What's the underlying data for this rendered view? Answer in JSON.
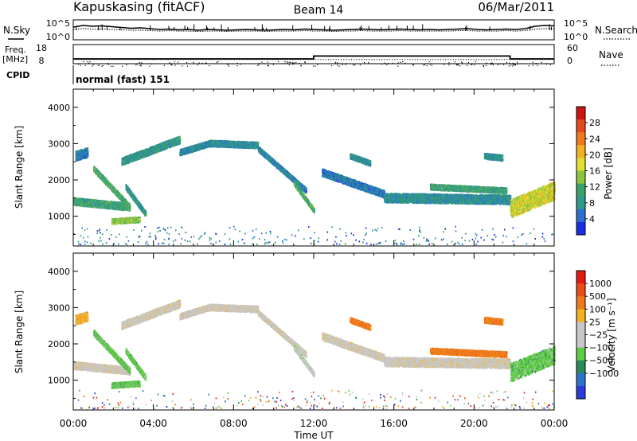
{
  "header": {
    "station": "Kapuskasing (fitACF)",
    "beam": "Beam 14",
    "date": "06/Mar/2011"
  },
  "noise_panel": {
    "left_label": "N.Sky",
    "right_label": "N.Search",
    "left_ticks": [
      "10^5",
      "10^0"
    ],
    "right_ticks": [
      "10^5",
      "10^0"
    ],
    "noise_sky_trace": [
      3.2,
      3.6,
      3.4,
      3.5,
      3.3,
      3.1,
      2.9,
      3.0,
      2.8,
      2.6,
      2.7,
      2.5,
      2.6,
      2.4,
      2.6,
      2.5,
      2.4,
      2.5,
      2.6,
      2.5,
      2.4,
      2.5,
      2.6,
      2.5,
      2.7,
      2.6,
      2.5,
      2.4,
      2.5,
      2.6,
      2.7,
      2.6,
      2.5,
      2.6,
      2.7,
      2.6,
      2.5,
      2.6,
      2.5,
      2.6,
      2.7,
      2.8,
      2.6,
      2.5,
      2.6,
      2.7,
      2.6,
      2.8,
      3.4,
      3.6,
      3.5
    ],
    "noise_search_trace": [
      2.6,
      2.8,
      2.7,
      2.7,
      2.6,
      2.5,
      2.4,
      2.4,
      2.3,
      2.2,
      2.3,
      2.2,
      2.2,
      2.1,
      2.2,
      2.2,
      2.1,
      2.2,
      2.2,
      2.2,
      2.1,
      2.2,
      2.2,
      2.2,
      2.3,
      2.2,
      2.2,
      2.1,
      2.2,
      2.2,
      2.3,
      2.2,
      2.2,
      2.2,
      2.3,
      2.2,
      2.2,
      2.2,
      2.2,
      2.2,
      2.3,
      2.3,
      2.2,
      2.2,
      2.2,
      2.3,
      2.2,
      2.3,
      2.7,
      2.8,
      2.8
    ]
  },
  "freq_panel": {
    "left_label_1": "Freq.",
    "left_label_2": "[MHz]",
    "right_label": "Nave",
    "left_ticks": [
      "18",
      "8"
    ],
    "right_ticks": [
      "60",
      "0"
    ],
    "freq_steps": [
      {
        "t0": 0,
        "t1": 12,
        "mhz": 10.5
      },
      {
        "t0": 12,
        "t1": 21.8,
        "mhz": 12.0
      },
      {
        "t0": 21.8,
        "t1": 24,
        "mhz": 10.5
      }
    ],
    "nave_dotted_level": 13
  },
  "cpid": {
    "label": "CPID",
    "value": "normal (fast) 151"
  },
  "x_axis": {
    "label": "Time UT",
    "ticks": [
      "00:00",
      "04:00",
      "08:00",
      "12:00",
      "16:00",
      "20:00",
      "00:00"
    ]
  },
  "chart_data": [
    {
      "type": "heatmap",
      "parameter": "power",
      "xlabel": "Time UT",
      "ylabel": "Slant Range [km]",
      "x_unit": "hours UT",
      "xlim": [
        0,
        24
      ],
      "ylim": [
        180,
        4500
      ],
      "yticks": [
        "1000",
        "2000",
        "3000",
        "4000"
      ],
      "colorbar": {
        "label": "Power [dB]",
        "range": [
          0,
          32
        ],
        "ticks": [
          "4",
          "8",
          "12",
          "16",
          "20",
          "24",
          "28"
        ],
        "colors": [
          "#1a2ee6",
          "#2c6fd0",
          "#2f9a8e",
          "#3aa36a",
          "#8cc53f",
          "#e3df30",
          "#f2b120",
          "#ee7a1d",
          "#e54a1b",
          "#cc1414"
        ]
      },
      "echo_bands": [
        {
          "t0": 0.0,
          "t1": 2.8,
          "r0": 1400,
          "r1": 1250,
          "w": 200,
          "pw": 10
        },
        {
          "t0": 0.1,
          "t1": 0.7,
          "r0": 2650,
          "r1": 2750,
          "w": 260,
          "pw": 6
        },
        {
          "t0": 1.0,
          "t1": 2.8,
          "r0": 2300,
          "r1": 1250,
          "w": 150,
          "pw": 11
        },
        {
          "t0": 1.9,
          "t1": 3.3,
          "r0": 850,
          "r1": 900,
          "w": 140,
          "pw": 14
        },
        {
          "t0": 2.6,
          "t1": 3.6,
          "r0": 1800,
          "r1": 1050,
          "w": 140,
          "pw": 9
        },
        {
          "t0": 2.4,
          "t1": 5.3,
          "r0": 2500,
          "r1": 3100,
          "w": 200,
          "pw": 9
        },
        {
          "t0": 5.3,
          "t1": 6.8,
          "r0": 2750,
          "r1": 3000,
          "w": 160,
          "pw": 7
        },
        {
          "t0": 6.8,
          "t1": 9.2,
          "r0": 3000,
          "r1": 2950,
          "w": 170,
          "pw": 8
        },
        {
          "t0": 9.2,
          "t1": 11.6,
          "r0": 2850,
          "r1": 1700,
          "w": 140,
          "pw": 7
        },
        {
          "t0": 11.0,
          "t1": 12.0,
          "r0": 1900,
          "r1": 1150,
          "w": 120,
          "pw": 11
        },
        {
          "t0": 12.4,
          "t1": 15.5,
          "r0": 2200,
          "r1": 1600,
          "w": 200,
          "pw": 6
        },
        {
          "t0": 13.8,
          "t1": 14.8,
          "r0": 2650,
          "r1": 2450,
          "w": 140,
          "pw": 8
        },
        {
          "t0": 15.5,
          "t1": 21.8,
          "r0": 1500,
          "r1": 1450,
          "w": 250,
          "pw": 8
        },
        {
          "t0": 17.8,
          "t1": 21.6,
          "r0": 1800,
          "r1": 1700,
          "w": 150,
          "pw": 10
        },
        {
          "t0": 20.5,
          "t1": 21.4,
          "r0": 2650,
          "r1": 2600,
          "w": 150,
          "pw": 8
        },
        {
          "t0": 21.8,
          "t1": 24.0,
          "r0": 1200,
          "r1": 1700,
          "w": 500,
          "pw": 17
        }
      ]
    },
    {
      "type": "heatmap",
      "parameter": "velocity",
      "xlabel": "Time UT",
      "ylabel": "Slant Range [km]",
      "x_unit": "hours UT",
      "xlim": [
        0,
        24
      ],
      "ylim": [
        180,
        4500
      ],
      "yticks": [
        "1000",
        "2000",
        "3000",
        "4000"
      ],
      "colorbar": {
        "label": "Velocity [m s⁻¹]",
        "ticks": [
          "1000",
          "500",
          "100",
          "25",
          "−25",
          "−100",
          "−500",
          "−1000"
        ],
        "colors": [
          "#2a3bd6",
          "#2e73c9",
          "#2a8a5a",
          "#5fcc45",
          "#c8c8c8",
          "#c8c8c8",
          "#f2b120",
          "#ee7a1d",
          "#ec4d18",
          "#e41a10"
        ]
      },
      "echo_bands": [
        {
          "t0": 0.0,
          "t1": 2.8,
          "r0": 1400,
          "r1": 1250,
          "w": 200,
          "vc": 5
        },
        {
          "t0": 0.1,
          "t1": 0.7,
          "r0": 2650,
          "r1": 2750,
          "w": 260,
          "vc": 6
        },
        {
          "t0": 1.0,
          "t1": 2.8,
          "r0": 2300,
          "r1": 1250,
          "w": 150,
          "vc": 3
        },
        {
          "t0": 1.9,
          "t1": 3.3,
          "r0": 850,
          "r1": 900,
          "w": 140,
          "vc": 3
        },
        {
          "t0": 2.6,
          "t1": 3.6,
          "r0": 1800,
          "r1": 1050,
          "w": 140,
          "vc": 3
        },
        {
          "t0": 2.4,
          "t1": 5.3,
          "r0": 2500,
          "r1": 3100,
          "w": 200,
          "vc": 5
        },
        {
          "t0": 5.3,
          "t1": 6.8,
          "r0": 2750,
          "r1": 3000,
          "w": 160,
          "vc": 5
        },
        {
          "t0": 6.8,
          "t1": 9.2,
          "r0": 3000,
          "r1": 2950,
          "w": 170,
          "vc": 5
        },
        {
          "t0": 9.2,
          "t1": 11.6,
          "r0": 2850,
          "r1": 1700,
          "w": 140,
          "vc": 5
        },
        {
          "t0": 11.0,
          "t1": 12.0,
          "r0": 1900,
          "r1": 1150,
          "w": 120,
          "vc": 4
        },
        {
          "t0": 12.4,
          "t1": 15.5,
          "r0": 2200,
          "r1": 1600,
          "w": 200,
          "vc": 5
        },
        {
          "t0": 13.8,
          "t1": 14.8,
          "r0": 2650,
          "r1": 2450,
          "w": 140,
          "vc": 7
        },
        {
          "t0": 15.5,
          "t1": 21.8,
          "r0": 1500,
          "r1": 1450,
          "w": 250,
          "vc": 5
        },
        {
          "t0": 17.8,
          "t1": 21.6,
          "r0": 1800,
          "r1": 1700,
          "w": 150,
          "vc": 7
        },
        {
          "t0": 20.5,
          "t1": 21.4,
          "r0": 2650,
          "r1": 2600,
          "w": 150,
          "vc": 7
        },
        {
          "t0": 21.8,
          "t1": 24.0,
          "r0": 1200,
          "r1": 1700,
          "w": 500,
          "vc": 3
        }
      ]
    }
  ]
}
